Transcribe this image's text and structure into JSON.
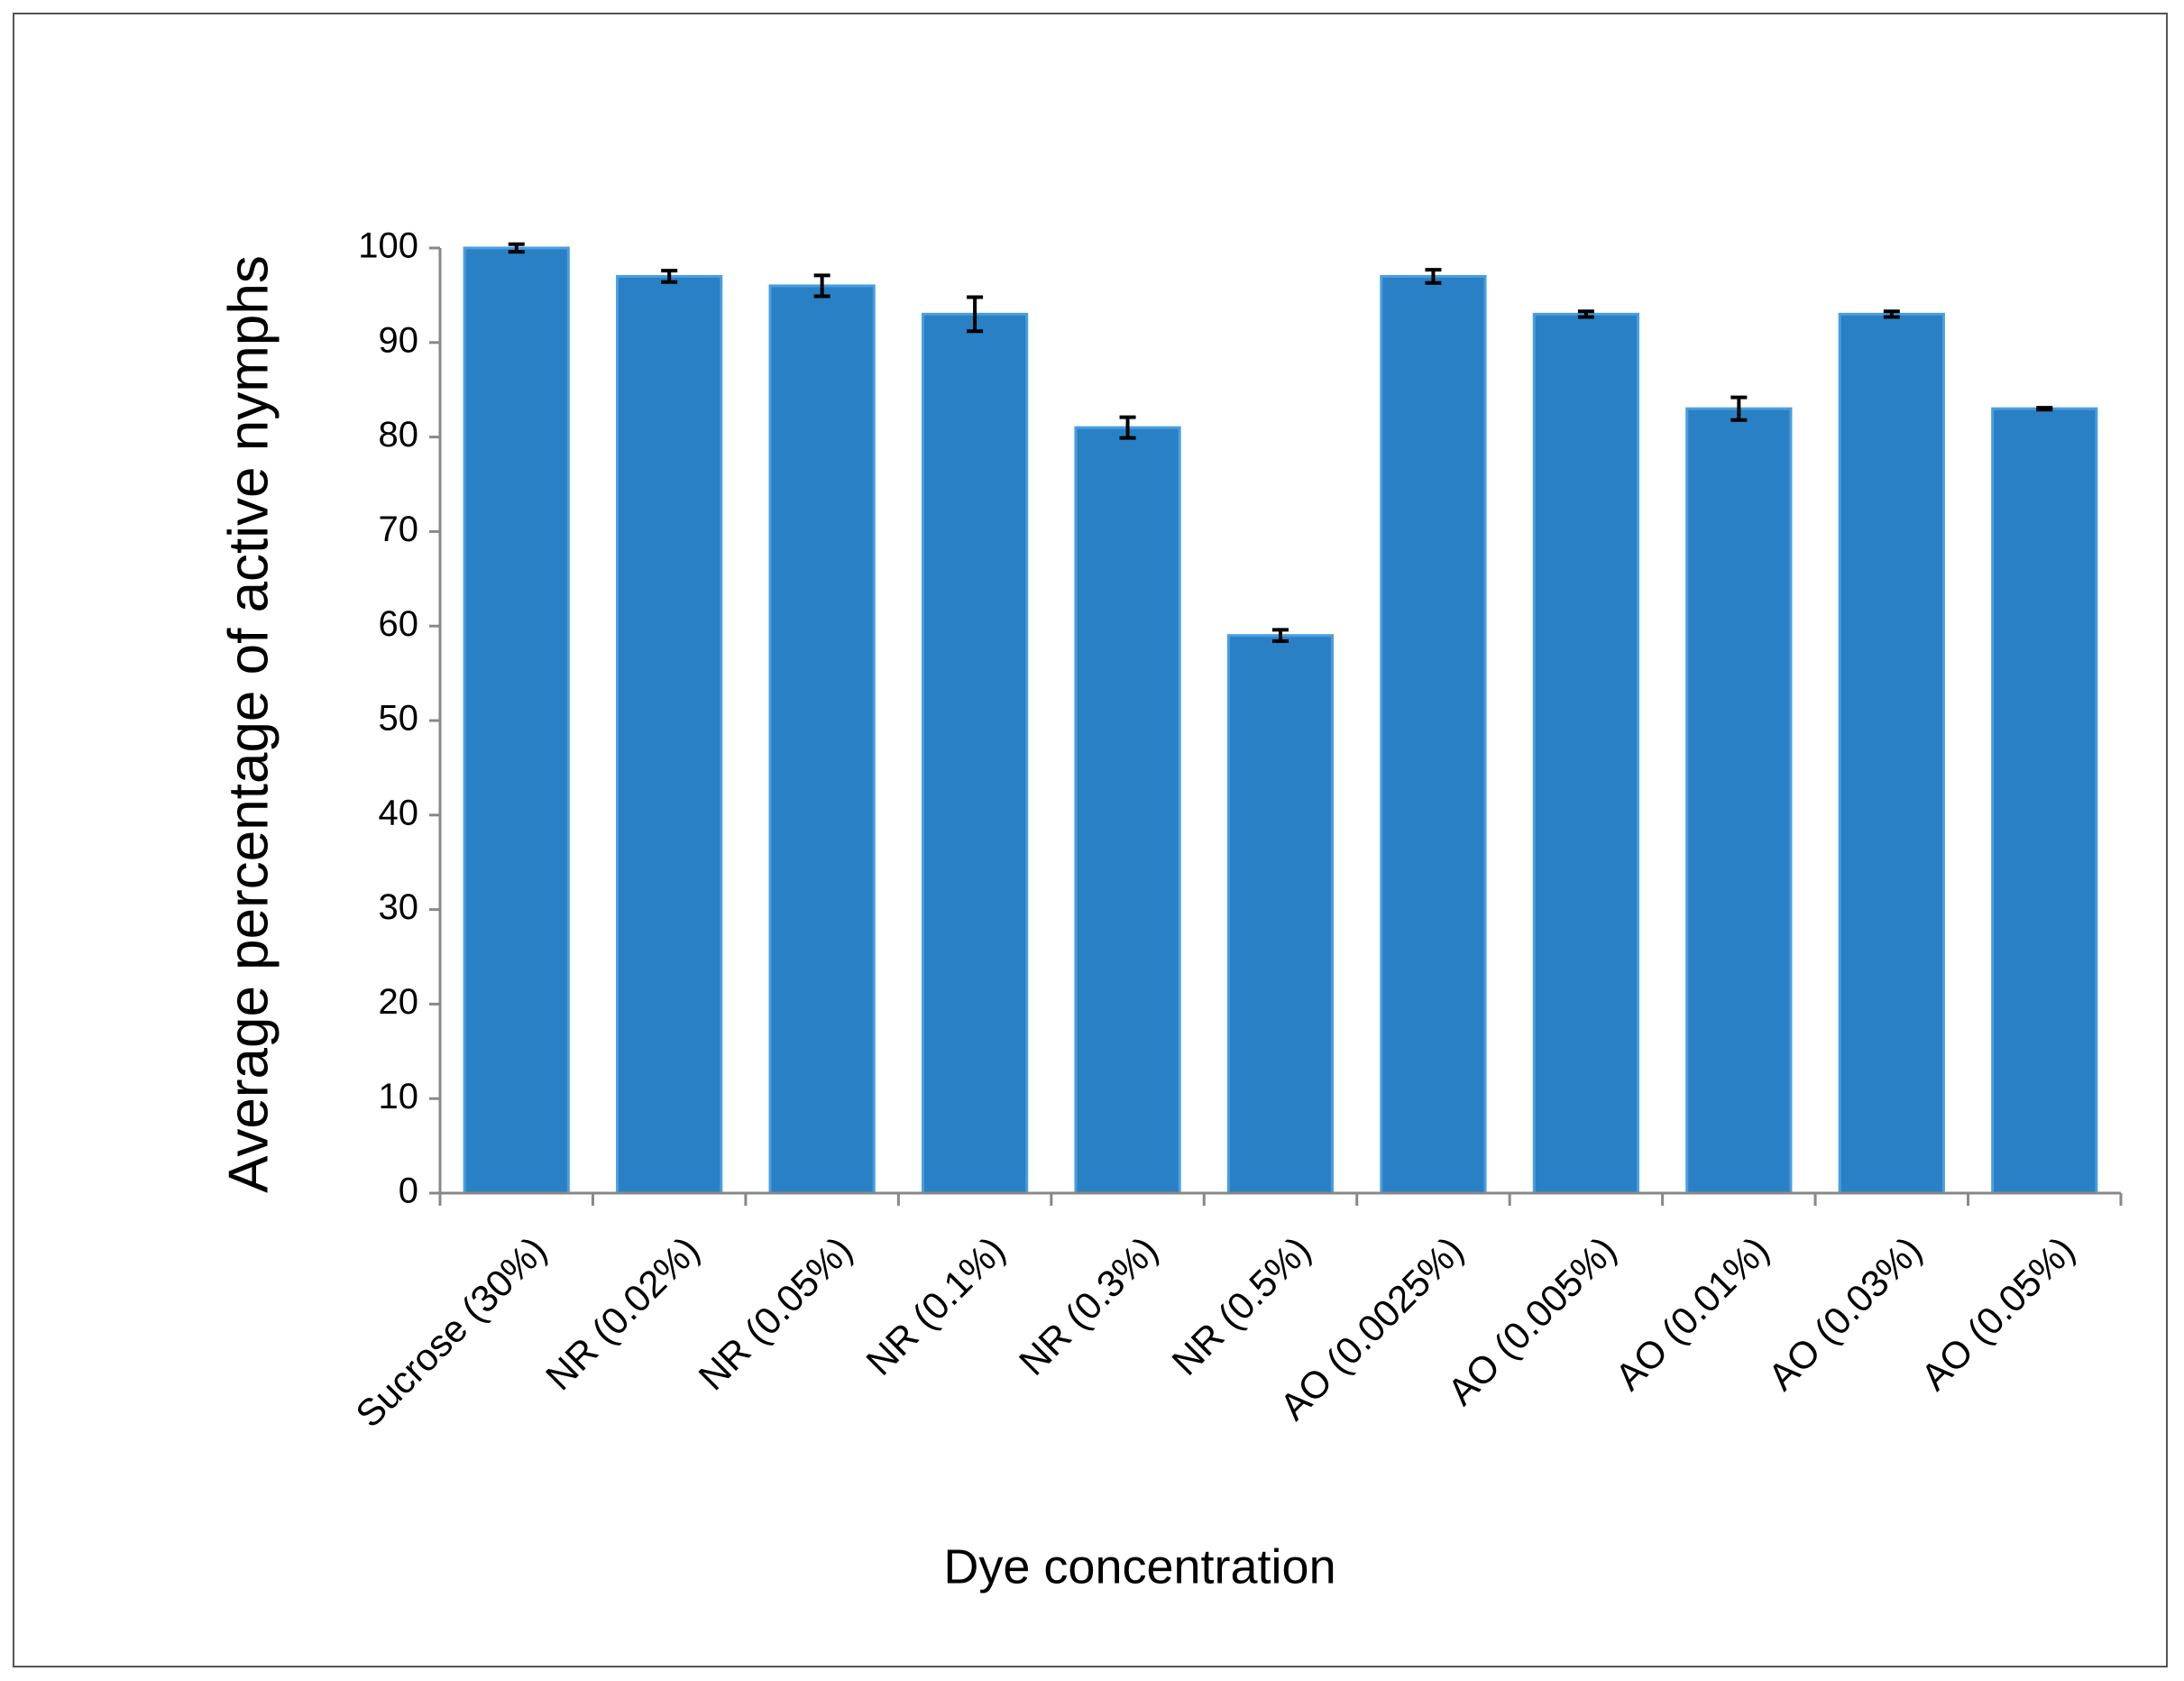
{
  "chart_data": {
    "type": "bar",
    "x_label": "Dye concentration",
    "y_label": "Average percentage of active nymphs",
    "categories": [
      "Sucrose (30%)",
      "NR (0.02%)",
      "NR (0.05%)",
      "NR (0.1%)",
      "NR (0.3%)",
      "NR (0.5%)",
      "AO (0.0025%)",
      "AO (0.005%)",
      "AO (0.01%)",
      "AO (0.03%)",
      "AO (0.05%)"
    ],
    "values": [
      100,
      97,
      96,
      93,
      81,
      59,
      97,
      93,
      83,
      93,
      83
    ],
    "errors": [
      0.4,
      0.6,
      1.1,
      1.8,
      1.1,
      0.6,
      0.7,
      0.3,
      1.2,
      0.3,
      0.1
    ],
    "color": "#2980c4",
    "ylim": [
      0,
      100
    ],
    "yticks": [
      0,
      10,
      20,
      30,
      40,
      50,
      60,
      70,
      80,
      90,
      100
    ]
  }
}
